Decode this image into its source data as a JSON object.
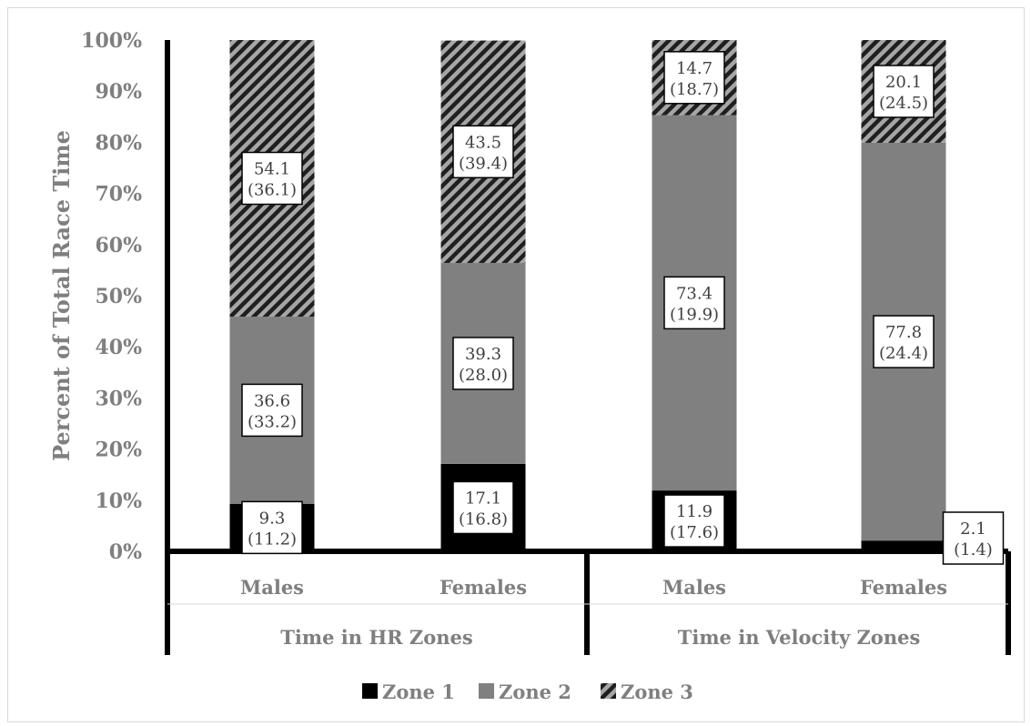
{
  "colors": {
    "zone1": "#000000",
    "zone2": "#808080",
    "zone3_fg": "#1f1f1f",
    "zone3_bg": "#a6a6a6",
    "axis_text": "#7f7f7f"
  },
  "chart_data": {
    "type": "bar",
    "stacked": true,
    "ylabel": "Percent of Total Race Time",
    "ylim": [
      0,
      100
    ],
    "yticks": [
      "0%",
      "10%",
      "20%",
      "30%",
      "40%",
      "50%",
      "60%",
      "70%",
      "80%",
      "90%",
      "100%"
    ],
    "groups": [
      {
        "label": "Time in HR Zones",
        "categories": [
          "Males",
          "Females"
        ]
      },
      {
        "label": "Time in Velocity Zones",
        "categories": [
          "Males",
          "Females"
        ]
      }
    ],
    "series": [
      {
        "name": "Zone 1",
        "values": [
          9.3,
          17.1,
          11.9,
          2.1
        ],
        "sd": [
          "(11.2)",
          "(16.8)",
          "(17.6)",
          "(1.4)"
        ],
        "labels": [
          "9.3",
          "17.1",
          "11.9",
          "2.1"
        ]
      },
      {
        "name": "Zone 2",
        "values": [
          36.6,
          39.3,
          73.4,
          77.8
        ],
        "sd": [
          "(33.2)",
          "(28.0)",
          "(19.9)",
          "(24.4)"
        ],
        "labels": [
          "36.6",
          "39.3",
          "73.4",
          "77.8"
        ]
      },
      {
        "name": "Zone 3",
        "values": [
          54.1,
          43.5,
          14.7,
          20.1
        ],
        "sd": [
          "(36.1)",
          "(39.4)",
          "(18.7)",
          "(24.5)"
        ],
        "labels": [
          "54.1",
          "43.5",
          "14.7",
          "20.1"
        ]
      }
    ],
    "legend_position": "bottom"
  }
}
